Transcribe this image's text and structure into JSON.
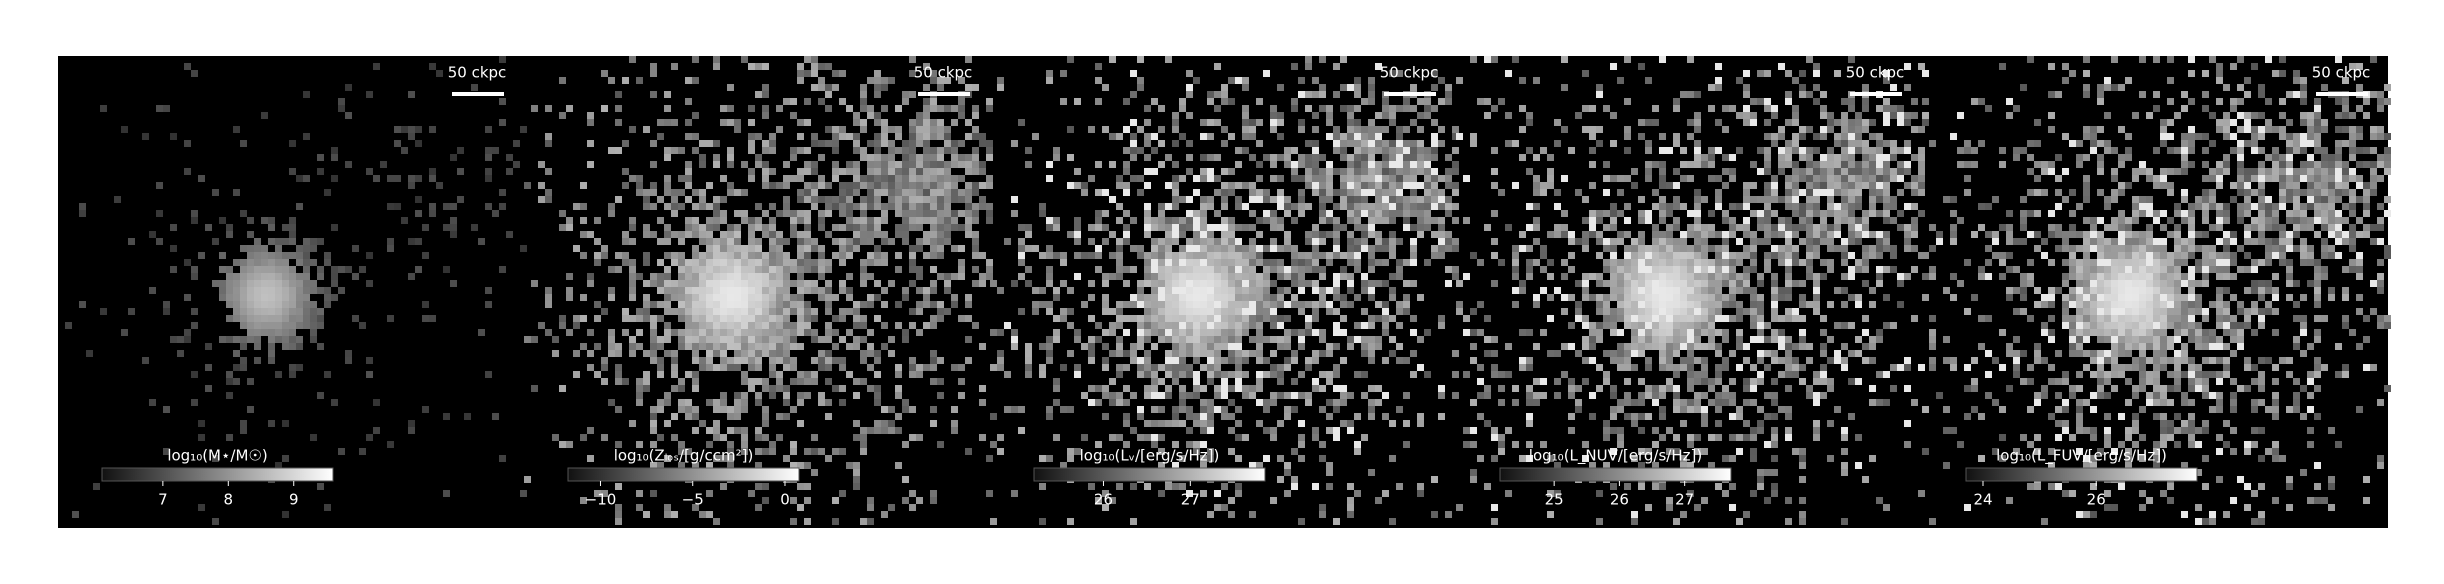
{
  "panels": [
    {
      "scale_label": "50 ckpc",
      "colorbar": {
        "label": "log₁₀(M⋆/M☉)",
        "lim": [
          6.07,
          9.6
        ],
        "ticks": [
          7,
          8,
          9
        ]
      }
    },
    {
      "scale_label": "50 ckpc",
      "colorbar": {
        "label": "log₁₀(Zₗₒₛ/[g/ccm²])",
        "lim": [
          -11.76,
          0.76
        ],
        "ticks": [
          {
            "value": -10,
            "label": "−10"
          },
          {
            "value": -5,
            "label": "−5"
          },
          0
        ]
      }
    },
    {
      "scale_label": "50 ckpc",
      "colorbar": {
        "label": "log₁₀(Lᵥ/[erg/s/Hz])",
        "lim": [
          25.2,
          27.86
        ],
        "ticks": [
          26,
          27
        ]
      }
    },
    {
      "scale_label": "50 ckpc",
      "colorbar": {
        "label": "log₁₀(L_NUV/[erg/s/Hz])",
        "lim": [
          24.17,
          27.71
        ],
        "ticks": [
          25,
          26,
          27
        ]
      }
    },
    {
      "scale_label": "50 ckpc",
      "colorbar": {
        "label": "log₁₀(L_FUV/[erg/s/Hz])",
        "lim": [
          23.7,
          27.78
        ],
        "ticks": [
          24,
          26
        ]
      }
    }
  ]
}
